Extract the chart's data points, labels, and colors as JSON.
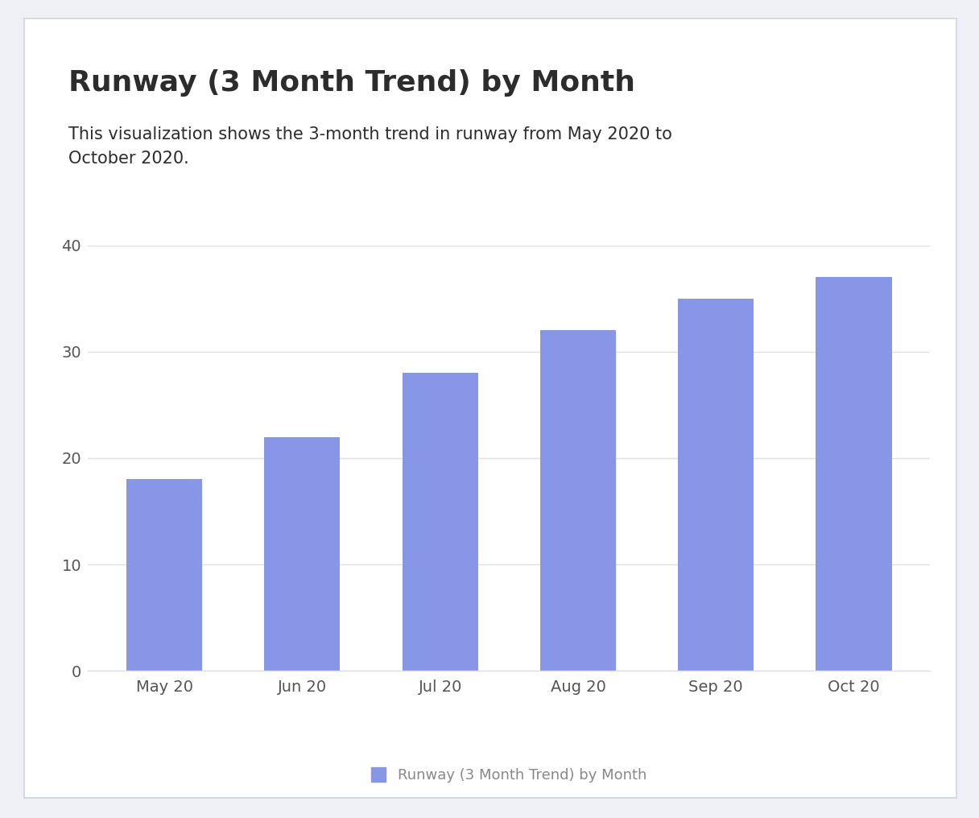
{
  "title": "Runway (3 Month Trend) by Month",
  "subtitle": "This visualization shows the 3-month trend in runway from May 2020 to\nOctober 2020.",
  "categories": [
    "May 20",
    "Jun 20",
    "Jul 20",
    "Aug 20",
    "Sep 20",
    "Oct 20"
  ],
  "values": [
    18,
    22,
    28,
    32,
    35,
    37
  ],
  "bar_color": "#8896E8",
  "background_color": "#ffffff",
  "card_background": "#eef0f5",
  "ylim": [
    0,
    40
  ],
  "yticks": [
    0,
    10,
    20,
    30,
    40
  ],
  "title_fontsize": 26,
  "subtitle_fontsize": 15,
  "tick_fontsize": 14,
  "legend_label": "Runway (3 Month Trend) by Month",
  "legend_fontsize": 13,
  "grid_color": "#e0e0e0",
  "text_color": "#2c2c2c",
  "tick_color": "#555555",
  "legend_text_color": "#888888",
  "card_border_color": "#d0d4e0"
}
